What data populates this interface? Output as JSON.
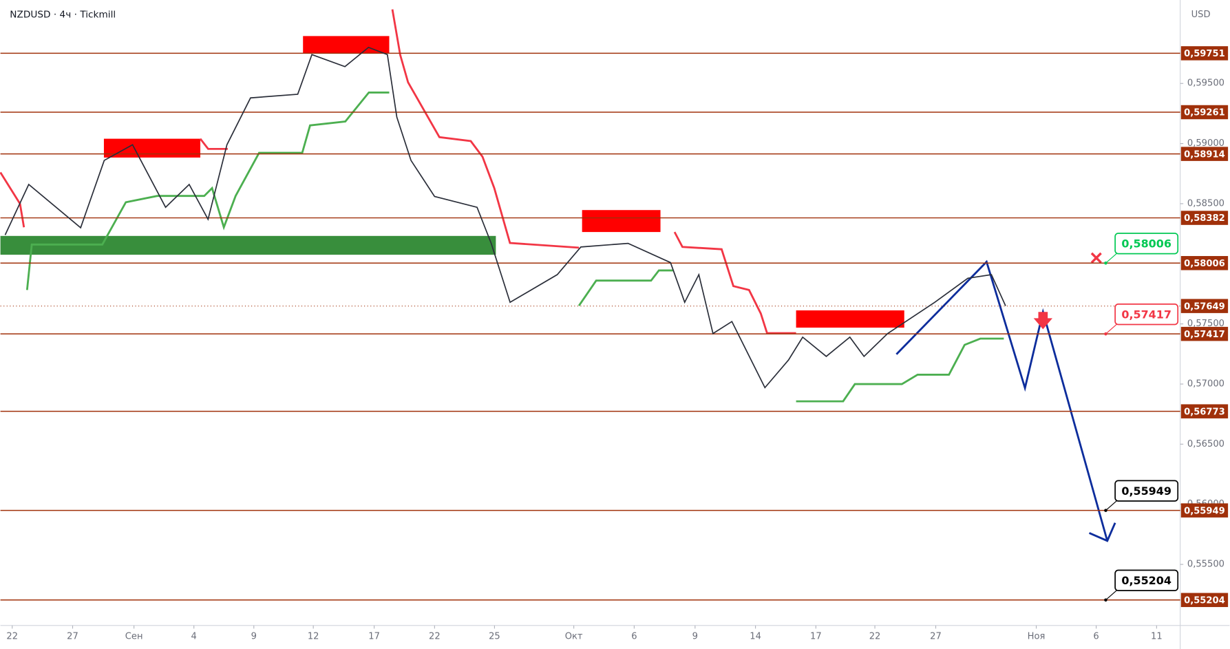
{
  "chart_data": {
    "type": "line",
    "title": "NZDUSD · 4ч · Tickmill",
    "currency": "USD",
    "x": [
      1,
      6,
      17,
      22,
      28,
      35,
      40,
      44,
      48,
      53,
      63,
      66,
      73,
      78,
      82,
      84,
      87,
      92,
      101,
      104,
      108,
      118,
      123,
      133,
      142,
      145,
      148,
      151,
      155,
      162,
      167,
      170,
      175,
      180,
      183,
      188,
      198,
      205,
      210,
      213
    ],
    "values": [
      0.5824,
      0.5866,
      0.583,
      0.5886,
      0.5899,
      0.5847,
      0.5866,
      0.5837,
      0.5899,
      0.5938,
      0.5941,
      0.5974,
      0.5964,
      0.598,
      0.5974,
      0.5922,
      0.5886,
      0.5856,
      0.5847,
      0.5817,
      0.5768,
      0.5791,
      0.5814,
      0.5817,
      0.5801,
      0.5768,
      0.5791,
      0.5742,
      0.5752,
      0.5697,
      0.572,
      0.5739,
      0.5723,
      0.5739,
      0.5723,
      0.5742,
      0.5768,
      0.5788,
      0.5791,
      0.5765
    ],
    "color": "#2a2e39",
    "xlim": [
      0,
      250
    ],
    "ylim": [
      0.54992,
      0.60194
    ],
    "xticks": [
      {
        "value": 2.5,
        "label": "22"
      },
      {
        "value": 15.3,
        "label": "27"
      },
      {
        "value": 28.3,
        "label": "Сен"
      },
      {
        "value": 41,
        "label": "4"
      },
      {
        "value": 53.7,
        "label": "9"
      },
      {
        "value": 66.3,
        "label": "12"
      },
      {
        "value": 79.2,
        "label": "17"
      },
      {
        "value": 92,
        "label": "22"
      },
      {
        "value": 104.7,
        "label": "25"
      },
      {
        "value": 121.5,
        "label": "Окт"
      },
      {
        "value": 134.3,
        "label": "6"
      },
      {
        "value": 147.2,
        "label": "9"
      },
      {
        "value": 160,
        "label": "14"
      },
      {
        "value": 172.8,
        "label": "17"
      },
      {
        "value": 185.3,
        "label": "22"
      },
      {
        "value": 198.2,
        "label": "27"
      },
      {
        "value": 219.5,
        "label": "Ноя"
      },
      {
        "value": 232.2,
        "label": "6"
      },
      {
        "value": 245,
        "label": "11"
      }
    ],
    "yticks": [
      {
        "value": 0.595,
        "label": "0,59500"
      },
      {
        "value": 0.59,
        "label": "0,59000"
      },
      {
        "value": 0.585,
        "label": "0,58500"
      },
      {
        "value": 0.575,
        "label": "0,57500"
      },
      {
        "value": 0.57,
        "label": "0,57000"
      },
      {
        "value": 0.565,
        "label": "0,56500"
      },
      {
        "value": 0.56,
        "label": "0,56000"
      },
      {
        "value": 0.555,
        "label": "0,55500"
      }
    ],
    "levels": [
      {
        "value": 0.59751,
        "label": "0,59751"
      },
      {
        "value": 0.59261,
        "label": "0,59261"
      },
      {
        "value": 0.58914,
        "label": "0,58914"
      },
      {
        "value": 0.58382,
        "label": "0,58382"
      },
      {
        "value": 0.58006,
        "label": "0,58006"
      },
      {
        "value": 0.57417,
        "label": "0,57417"
      },
      {
        "value": 0.56773,
        "label": "0,56773"
      },
      {
        "value": 0.55949,
        "label": "0,55949"
      },
      {
        "value": 0.55204,
        "label": "0,55204"
      }
    ],
    "level_color": "#a0300a",
    "last_price": {
      "value": 0.57649,
      "label": "0,57649"
    },
    "callouts": [
      {
        "value": 0.58006,
        "label": "0,58006",
        "color": "#00c853"
      },
      {
        "value": 0.57417,
        "label": "0,57417",
        "color": "#f23645"
      },
      {
        "value": 0.55949,
        "label": "0,55949",
        "color": "#000000"
      },
      {
        "value": 0.55204,
        "label": "0,55204",
        "color": "#000000"
      }
    ]
  }
}
